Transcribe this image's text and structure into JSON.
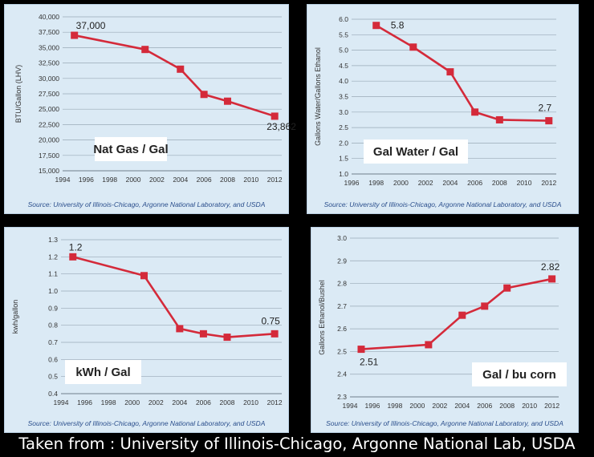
{
  "footer": "Taken from : University of Illinois-Chicago, Argonne National Lab, USDA",
  "colors": {
    "line": "#d42a3a",
    "background": "#dbeaf5",
    "grid": "#9aa9b6"
  },
  "chart_data": [
    {
      "type": "line",
      "box_label": "Nat Gas / Gal",
      "ylabel": "BTU/Gallon (LHV)",
      "source": "Source: University of Illinois-Chicago, Argonne National Laboratory, and USDA",
      "x": [
        1995,
        2001,
        2004,
        2006,
        2008,
        2012
      ],
      "values": [
        37000,
        34700,
        31500,
        27400,
        26300,
        23862
      ],
      "xlim": [
        1994,
        2012.6
      ],
      "xticks": [
        1994,
        1996,
        1998,
        2000,
        2002,
        2004,
        2006,
        2008,
        2010,
        2012
      ],
      "ylim": [
        15000,
        40000
      ],
      "yticks": [
        15000,
        17500,
        20000,
        22500,
        25000,
        27500,
        30000,
        32500,
        35000,
        37500,
        40000
      ],
      "ytick_labels": [
        "15,000",
        "17,500",
        "20,000",
        "22,500",
        "25,000",
        "27,500",
        "30,000",
        "32,500",
        "35,000",
        "37,500",
        "40,000"
      ],
      "annotations": [
        {
          "index": 0,
          "text": "37,000"
        },
        {
          "index": 5,
          "text": "23,862"
        }
      ]
    },
    {
      "type": "line",
      "box_label": "Gal Water / Gal",
      "ylabel": "Gallons Water/Gallons Ethanol",
      "source": "Source: University of Illinois-Chicago, Argonne National Laboratory, and USDA",
      "x": [
        1998,
        2001,
        2004,
        2006,
        2008,
        2012
      ],
      "values": [
        5.8,
        5.1,
        4.3,
        3.0,
        2.75,
        2.72
      ],
      "xlim": [
        1996,
        2012.6
      ],
      "xticks": [
        1996,
        1998,
        2000,
        2002,
        2004,
        2006,
        2008,
        2010,
        2012
      ],
      "ylim": [
        1.0,
        6.0
      ],
      "yticks": [
        1.0,
        1.5,
        2.0,
        2.5,
        3.0,
        3.5,
        4.0,
        4.5,
        5.0,
        5.5,
        6.0
      ],
      "ytick_labels": [
        "1.0",
        "1.5",
        "2.0",
        "2.5",
        "3.0",
        "3.5",
        "4.0",
        "4.5",
        "5.0",
        "5.5",
        "6.0"
      ],
      "annotations": [
        {
          "index": 0,
          "text": "5.8"
        },
        {
          "index": 5,
          "text": "2.7"
        }
      ]
    },
    {
      "type": "line",
      "box_label": "kWh / Gal",
      "ylabel": "kwh/gallon",
      "source": "Source: University of Illinois-Chicago, Argonne National Laboratory, and USDA",
      "x": [
        1995,
        2001,
        2004,
        2006,
        2008,
        2012
      ],
      "values": [
        1.2,
        1.09,
        0.78,
        0.75,
        0.73,
        0.75
      ],
      "xlim": [
        1994,
        2012.6
      ],
      "xticks": [
        1994,
        1996,
        1998,
        2000,
        2002,
        2004,
        2006,
        2008,
        2010,
        2012
      ],
      "ylim": [
        0.4,
        1.3
      ],
      "yticks": [
        0.4,
        0.5,
        0.6,
        0.7,
        0.8,
        0.9,
        1.0,
        1.1,
        1.2,
        1.3
      ],
      "ytick_labels": [
        "0.4",
        "0.5",
        "0.6",
        "0.7",
        "0.8",
        "0.9",
        "1.0",
        "1.1",
        "1.2",
        "1.3"
      ],
      "annotations": [
        {
          "index": 0,
          "text": "1.2"
        },
        {
          "index": 5,
          "text": "0.75"
        }
      ]
    },
    {
      "type": "line",
      "box_label": "Gal / bu corn",
      "ylabel": "Gallons Ethanol/Bushel",
      "source": "Source: University of Illinois-Chicago, Argonne National Laboratory, and USDA",
      "x": [
        1995,
        2001,
        2004,
        2006,
        2008,
        2012
      ],
      "values": [
        2.51,
        2.53,
        2.66,
        2.7,
        2.78,
        2.82
      ],
      "xlim": [
        1994,
        2012.6
      ],
      "xticks": [
        1994,
        1996,
        1998,
        2000,
        2002,
        2004,
        2006,
        2008,
        2010,
        2012
      ],
      "ylim": [
        2.3,
        3.0
      ],
      "yticks": [
        2.3,
        2.4,
        2.5,
        2.6,
        2.7,
        2.8,
        2.9,
        3.0
      ],
      "ytick_labels": [
        "2.3",
        "2.4",
        "2.5",
        "2.6",
        "2.7",
        "2.8",
        "2.9",
        "3.0"
      ],
      "annotations": [
        {
          "index": 0,
          "text": "2.51"
        },
        {
          "index": 5,
          "text": "2.82"
        }
      ]
    }
  ]
}
